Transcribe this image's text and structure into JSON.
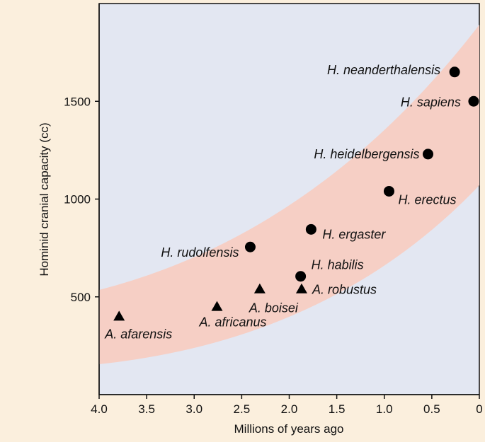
{
  "chart_data": {
    "type": "scatter",
    "xlabel": "Millions of years ago",
    "ylabel": "Hominid cranial capacity (cc)",
    "xlim": [
      4,
      0
    ],
    "ylim": [
      0,
      2000
    ],
    "xticks": [
      {
        "value": 4,
        "label": "4.0"
      },
      {
        "value": 3.5,
        "label": "3.5"
      },
      {
        "value": 3,
        "label": "3.0"
      },
      {
        "value": 2.5,
        "label": "2.5"
      },
      {
        "value": 2,
        "label": "2.0"
      },
      {
        "value": 1.5,
        "label": "1.5"
      },
      {
        "value": 1,
        "label": "1.0"
      },
      {
        "value": 0.5,
        "label": "0.5"
      },
      0
    ],
    "yticks": [
      500,
      1000,
      1500
    ],
    "series": [
      {
        "marker": "circle",
        "color": "#000000",
        "x": [
          0.26,
          0.06,
          0.54,
          0.95,
          1.77,
          2.41,
          1.88
        ],
        "values": [
          1650,
          1500,
          1230,
          1040,
          845,
          755,
          605
        ],
        "labels": [
          "H. neanderthalensis",
          "H. sapiens",
          "H. heidelbergensis",
          "H. erectus",
          "H. ergaster",
          "H. rudolfensis",
          "H. habilis"
        ]
      },
      {
        "marker": "triangle",
        "color": "#000000",
        "x": [
          3.79,
          2.76,
          2.31,
          1.87
        ],
        "values": [
          400,
          450,
          540,
          540
        ],
        "labels": [
          "A. afarensis",
          "A. africanus",
          "A. boisei",
          "A. robustus"
        ]
      }
    ]
  }
}
